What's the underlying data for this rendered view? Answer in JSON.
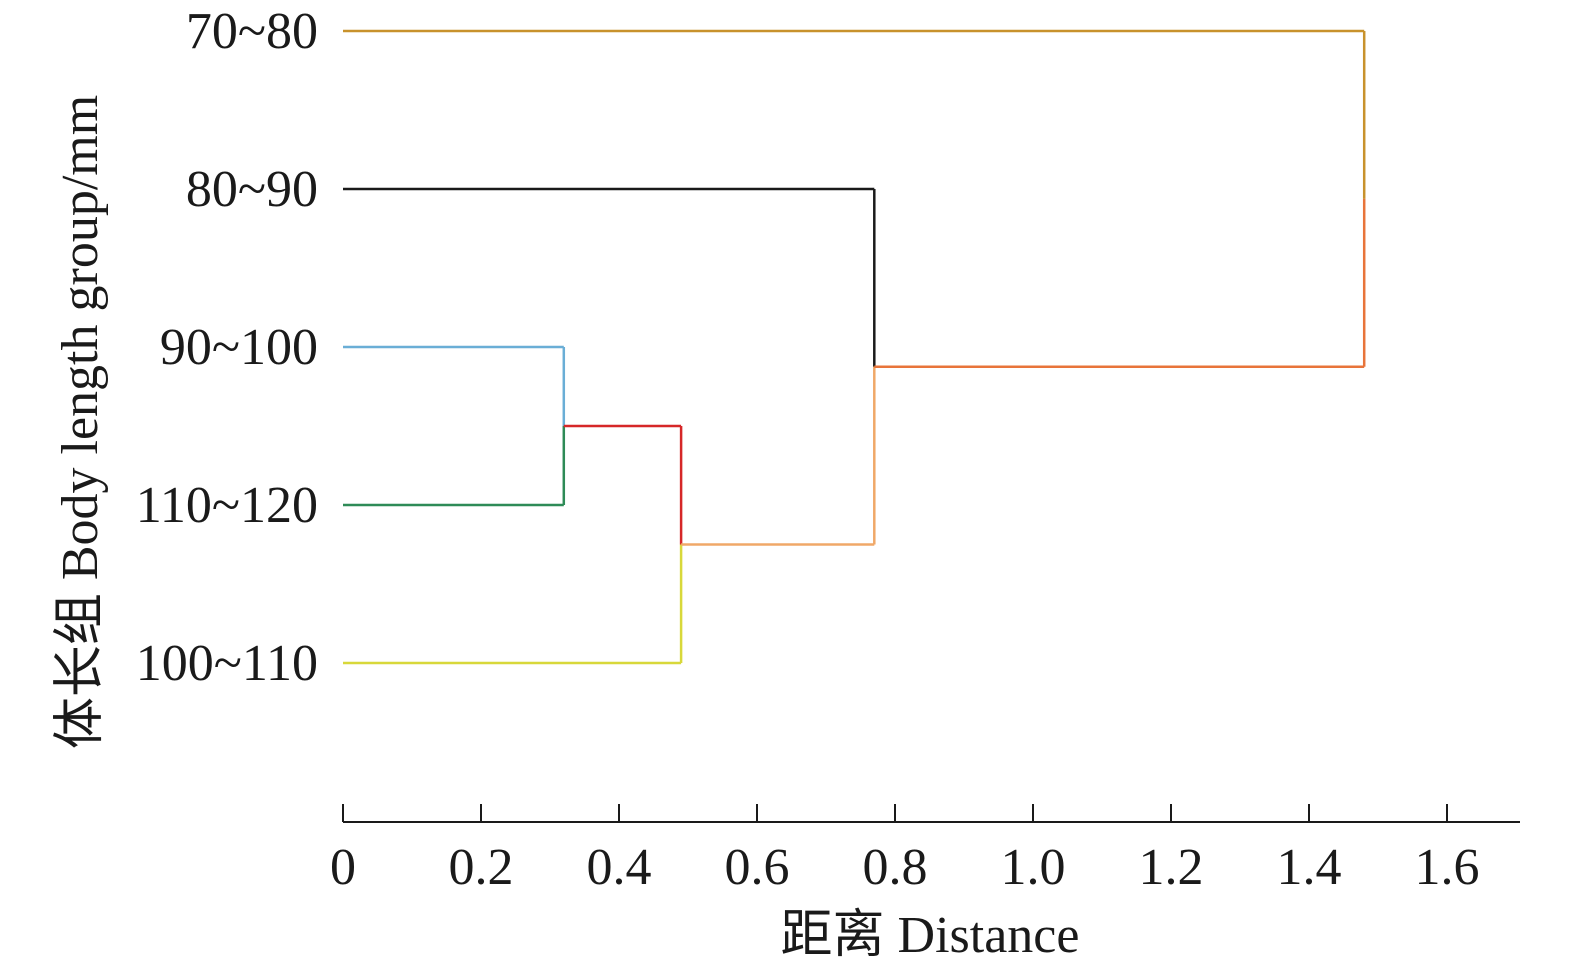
{
  "chart_data": {
    "type": "dendrogram",
    "orientation": "horizontal",
    "leaves": [
      "70~80",
      "80~90",
      "90~100",
      "110~120",
      "100~110"
    ],
    "merges": [
      {
        "id": "m1",
        "children": [
          "90~100",
          "110~120"
        ],
        "distance": 0.32,
        "color": "#d62728"
      },
      {
        "id": "m2",
        "children": [
          "m1",
          "100~110"
        ],
        "distance": 0.49,
        "color": "#f0a868"
      },
      {
        "id": "m3",
        "children": [
          "80~90",
          "m2"
        ],
        "distance": 0.77,
        "color": "#e8743a"
      },
      {
        "id": "m4",
        "children": [
          "70~80",
          "m3"
        ],
        "distance": 1.48,
        "color": "#c8922c"
      }
    ],
    "leaf_colors": {
      "70~80": "#c8922c",
      "80~90": "#1a1a1a",
      "90~100": "#6aaed6",
      "110~120": "#2e8b57",
      "100~110": "#d8d83a"
    },
    "x_ticks": [
      {
        "value": 0,
        "label": "0"
      },
      {
        "value": 0.2,
        "label": "0.2"
      },
      {
        "value": 0.4,
        "label": "0.4"
      },
      {
        "value": 0.6,
        "label": "0.6"
      },
      {
        "value": 0.8,
        "label": "0.8"
      },
      {
        "value": 1.0,
        "label": "1.0"
      },
      {
        "value": 1.2,
        "label": "1.2"
      },
      {
        "value": 1.4,
        "label": "1.4"
      },
      {
        "value": 1.6,
        "label": "1.6"
      }
    ],
    "xlim": [
      0,
      1.7
    ],
    "xlabel": "距离 Distance",
    "ylabel": "体长组 Body length group/mm",
    "grid": false
  }
}
